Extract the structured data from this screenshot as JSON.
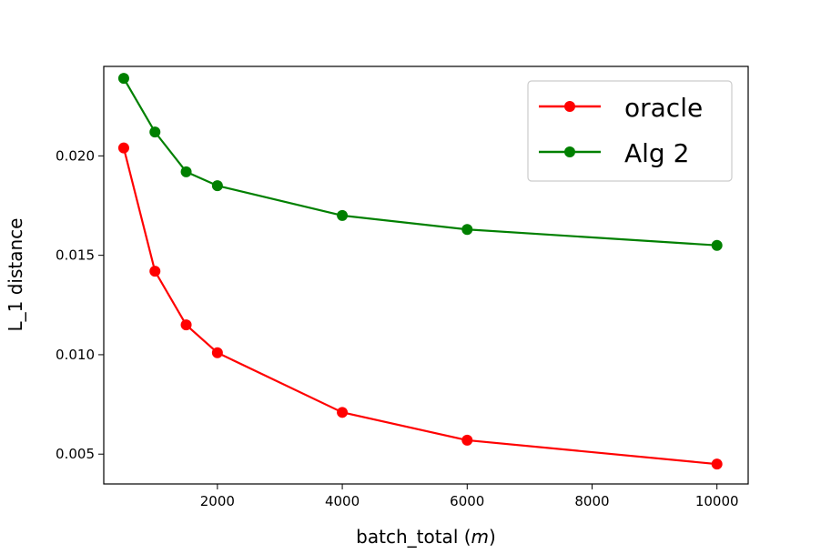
{
  "chart_data": {
    "type": "line",
    "title": "",
    "xlabel": "batch_total (",
    "xlabel_var": "m",
    "xlabel_close": ")",
    "ylabel": "L_1 distance",
    "xlim": [
      180,
      10500
    ],
    "ylim": [
      0.0035,
      0.0245
    ],
    "xticks": [
      2000,
      4000,
      6000,
      8000,
      10000
    ],
    "xtick_labels": [
      "2000",
      "4000",
      "6000",
      "8000",
      "10000"
    ],
    "yticks": [
      0.005,
      0.01,
      0.015,
      0.02
    ],
    "ytick_labels": [
      "0.005",
      "0.010",
      "0.015",
      "0.020"
    ],
    "grid": false,
    "legend_position": "top-right",
    "x": [
      500,
      1000,
      1500,
      2000,
      4000,
      6000,
      10000
    ],
    "series": [
      {
        "name": "oracle",
        "color": "#ff0000",
        "values": [
          0.0204,
          0.0142,
          0.0115,
          0.0101,
          0.0071,
          0.0057,
          0.0045
        ]
      },
      {
        "name": "Alg 2",
        "color": "#008000",
        "values": [
          0.0239,
          0.0212,
          0.0192,
          0.0185,
          0.017,
          0.0163,
          0.0155
        ]
      }
    ]
  }
}
